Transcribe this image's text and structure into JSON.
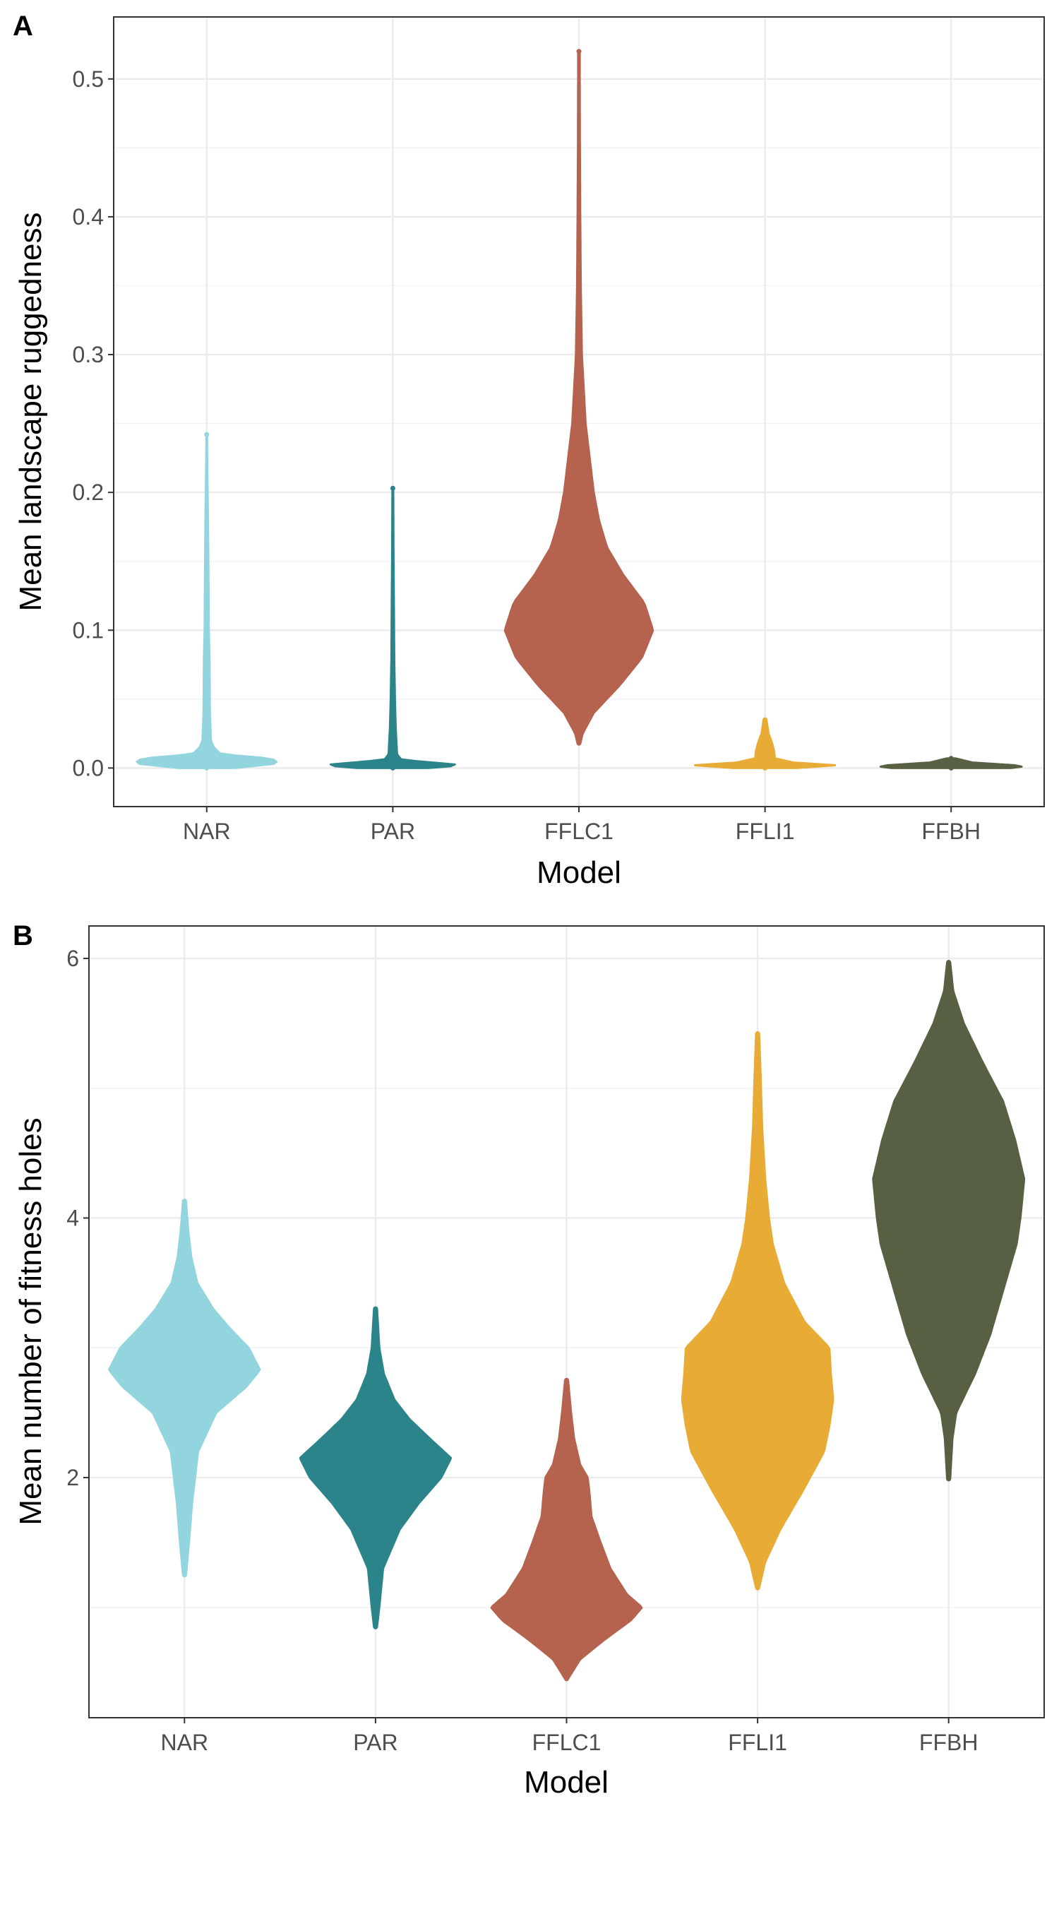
{
  "figure": {
    "panels": [
      {
        "letter": "A"
      },
      {
        "letter": "B"
      }
    ]
  },
  "colors": {
    "NAR": "#93d5df",
    "PAR": "#2b8489",
    "FFLC1": "#b5634e",
    "FFLI1": "#e8ac36",
    "FFBH": "#576043"
  },
  "chart_data": [
    {
      "type": "violin",
      "panel": "A",
      "title": "",
      "xlabel": "Model",
      "ylabel": "Mean landscape ruggedness",
      "categories": [
        "NAR",
        "PAR",
        "FFLC1",
        "FFLI1",
        "FFBH"
      ],
      "ylim": [
        -0.028,
        0.545
      ],
      "yticks": [
        0.0,
        0.1,
        0.2,
        0.3,
        0.4,
        0.5
      ],
      "ytick_labels": [
        "0.0",
        "0.1",
        "0.2",
        "0.3",
        "0.4",
        "0.5"
      ],
      "grid": true,
      "legend": "none",
      "series": [
        {
          "category": "NAR",
          "min": 0.0,
          "max": 0.242,
          "mode": 0.005,
          "profile": [
            [
              0.0,
              0.4
            ],
            [
              0.003,
              0.95
            ],
            [
              0.005,
              1.0
            ],
            [
              0.007,
              0.9
            ],
            [
              0.01,
              0.2
            ],
            [
              0.015,
              0.1
            ],
            [
              0.02,
              0.06
            ],
            [
              0.04,
              0.045
            ],
            [
              0.08,
              0.04
            ],
            [
              0.1,
              0.03
            ],
            [
              0.14,
              0.025
            ],
            [
              0.18,
              0.018
            ],
            [
              0.22,
              0.008
            ],
            [
              0.242,
              0.004
            ]
          ]
        },
        {
          "category": "PAR",
          "min": 0.0,
          "max": 0.203,
          "mode": 0.002,
          "profile": [
            [
              0.0,
              0.5
            ],
            [
              0.002,
              1.0
            ],
            [
              0.004,
              0.55
            ],
            [
              0.006,
              0.12
            ],
            [
              0.01,
              0.06
            ],
            [
              0.02,
              0.05
            ],
            [
              0.03,
              0.04
            ],
            [
              0.05,
              0.03
            ],
            [
              0.08,
              0.02
            ],
            [
              0.12,
              0.015
            ],
            [
              0.152,
              0.01
            ],
            [
              0.203,
              0.006
            ]
          ]
        },
        {
          "category": "FFLC1",
          "min": 0.018,
          "max": 0.52,
          "mode": 0.1,
          "profile": [
            [
              0.018,
              0.02
            ],
            [
              0.025,
              0.05
            ],
            [
              0.04,
              0.2
            ],
            [
              0.06,
              0.55
            ],
            [
              0.08,
              0.85
            ],
            [
              0.1,
              1.0
            ],
            [
              0.12,
              0.88
            ],
            [
              0.14,
              0.6
            ],
            [
              0.16,
              0.38
            ],
            [
              0.18,
              0.27
            ],
            [
              0.2,
              0.2
            ],
            [
              0.25,
              0.09
            ],
            [
              0.3,
              0.04
            ],
            [
              0.35,
              0.025
            ],
            [
              0.4,
              0.018
            ],
            [
              0.45,
              0.013
            ],
            [
              0.52,
              0.01
            ]
          ]
        },
        {
          "category": "FFLI1",
          "min": 0.0,
          "max": 0.035,
          "mode": 0.002,
          "profile": [
            [
              0.0,
              0.45
            ],
            [
              0.002,
              1.0
            ],
            [
              0.004,
              0.4
            ],
            [
              0.007,
              0.14
            ],
            [
              0.012,
              0.13
            ],
            [
              0.018,
              0.1
            ],
            [
              0.025,
              0.05
            ],
            [
              0.035,
              0.02
            ]
          ]
        },
        {
          "category": "FFBH",
          "min": 0.0,
          "max": 0.007,
          "mode": 0.001,
          "profile": [
            [
              0.0,
              0.85
            ],
            [
              0.001,
              1.0
            ],
            [
              0.002,
              0.9
            ],
            [
              0.004,
              0.3
            ],
            [
              0.007,
              0.06
            ]
          ]
        }
      ]
    },
    {
      "type": "violin",
      "panel": "B",
      "title": "",
      "xlabel": "Model",
      "ylabel": "Mean number of fitness holes",
      "categories": [
        "NAR",
        "PAR",
        "FFLC1",
        "FFLI1",
        "FFBH"
      ],
      "ylim": [
        0.15,
        6.25
      ],
      "yticks": [
        2,
        4,
        6
      ],
      "ytick_labels": [
        "2",
        "4",
        "6"
      ],
      "grid": true,
      "legend": "none",
      "series": [
        {
          "category": "NAR",
          "min": 1.25,
          "max": 4.13,
          "mode": 2.83,
          "profile": [
            [
              1.25,
              0.02
            ],
            [
              1.5,
              0.06
            ],
            [
              1.8,
              0.1
            ],
            [
              2.2,
              0.18
            ],
            [
              2.5,
              0.42
            ],
            [
              2.7,
              0.82
            ],
            [
              2.83,
              1.0
            ],
            [
              3.0,
              0.85
            ],
            [
              3.15,
              0.6
            ],
            [
              3.3,
              0.38
            ],
            [
              3.5,
              0.17
            ],
            [
              3.7,
              0.09
            ],
            [
              3.9,
              0.05
            ],
            [
              4.13,
              0.02
            ]
          ]
        },
        {
          "category": "PAR",
          "min": 0.85,
          "max": 3.3,
          "mode": 2.15,
          "profile": [
            [
              0.85,
              0.02
            ],
            [
              1.0,
              0.05
            ],
            [
              1.3,
              0.1
            ],
            [
              1.6,
              0.32
            ],
            [
              1.8,
              0.57
            ],
            [
              2.0,
              0.87
            ],
            [
              2.15,
              1.0
            ],
            [
              2.3,
              0.72
            ],
            [
              2.45,
              0.45
            ],
            [
              2.6,
              0.25
            ],
            [
              2.8,
              0.11
            ],
            [
              3.0,
              0.05
            ],
            [
              3.3,
              0.02
            ]
          ]
        },
        {
          "category": "FFLC1",
          "min": 0.45,
          "max": 2.75,
          "mode": 1.0,
          "profile": [
            [
              0.45,
              0.02
            ],
            [
              0.6,
              0.18
            ],
            [
              0.75,
              0.5
            ],
            [
              0.9,
              0.85
            ],
            [
              1.0,
              1.0
            ],
            [
              1.1,
              0.8
            ],
            [
              1.3,
              0.58
            ],
            [
              1.5,
              0.45
            ],
            [
              1.7,
              0.33
            ],
            [
              1.9,
              0.3
            ],
            [
              2.0,
              0.28
            ],
            [
              2.1,
              0.18
            ],
            [
              2.3,
              0.1
            ],
            [
              2.5,
              0.06
            ],
            [
              2.75,
              0.02
            ]
          ]
        },
        {
          "category": "FFLI1",
          "min": 1.15,
          "max": 5.42,
          "mode": 2.6,
          "profile": [
            [
              1.15,
              0.02
            ],
            [
              1.35,
              0.1
            ],
            [
              1.6,
              0.3
            ],
            [
              1.9,
              0.6
            ],
            [
              2.2,
              0.88
            ],
            [
              2.4,
              0.95
            ],
            [
              2.6,
              1.0
            ],
            [
              2.8,
              0.97
            ],
            [
              3.0,
              0.95
            ],
            [
              3.2,
              0.62
            ],
            [
              3.5,
              0.35
            ],
            [
              3.8,
              0.2
            ],
            [
              4.0,
              0.15
            ],
            [
              4.3,
              0.1
            ],
            [
              4.7,
              0.06
            ],
            [
              5.1,
              0.04
            ],
            [
              5.42,
              0.02
            ]
          ]
        },
        {
          "category": "FFBH",
          "min": 1.99,
          "max": 5.97,
          "mode": 4.3,
          "profile": [
            [
              1.99,
              0.02
            ],
            [
              2.3,
              0.05
            ],
            [
              2.5,
              0.1
            ],
            [
              2.8,
              0.35
            ],
            [
              3.1,
              0.55
            ],
            [
              3.4,
              0.7
            ],
            [
              3.8,
              0.9
            ],
            [
              4.0,
              0.95
            ],
            [
              4.3,
              1.0
            ],
            [
              4.6,
              0.88
            ],
            [
              4.9,
              0.72
            ],
            [
              5.2,
              0.45
            ],
            [
              5.5,
              0.2
            ],
            [
              5.75,
              0.06
            ],
            [
              5.97,
              0.02
            ]
          ]
        }
      ]
    }
  ]
}
